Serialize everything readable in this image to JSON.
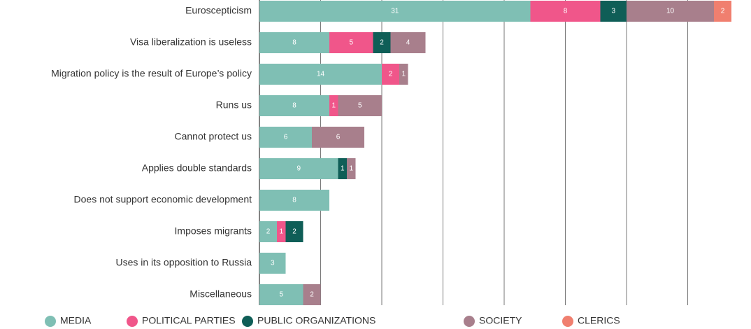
{
  "chart_data": {
    "type": "stacked_barh",
    "categories": [
      "Euroscepticism",
      "Visa liberalization is useless",
      "Migration policy is the result of Europe’s policy",
      "Runs us",
      "Cannot protect us",
      "Applies double standards",
      "Does not support economic development",
      "Imposes migrants",
      "Uses in its opposition to Russia",
      "Miscellaneous"
    ],
    "series": [
      {
        "name": "MEDIA",
        "color": "#7fbfb4",
        "values": [
          31,
          8,
          14,
          8,
          6,
          9,
          8,
          2,
          3,
          5
        ]
      },
      {
        "name": "POLITICAL PARTIES",
        "color": "#f0568a",
        "values": [
          8,
          5,
          2,
          1,
          0,
          0,
          0,
          1,
          0,
          0
        ]
      },
      {
        "name": "PUBLIC ORGANIZATIONS",
        "color": "#0f5e57",
        "values": [
          3,
          2,
          0,
          0,
          0,
          1,
          0,
          2,
          0,
          0
        ]
      },
      {
        "name": "SOCIETY",
        "color": "#a87f8c",
        "values": [
          10,
          4,
          1,
          5,
          6,
          1,
          0,
          0,
          0,
          2
        ]
      },
      {
        "name": "CLERICS",
        "color": "#f07f6f",
        "values": [
          2,
          0,
          0,
          0,
          0,
          0,
          0,
          0,
          0,
          0
        ]
      }
    ],
    "xlim": [
      0,
      56
    ],
    "xticks": [
      0,
      7,
      14,
      21,
      28,
      35,
      42,
      49
    ],
    "grid": true,
    "legend": "bottom"
  }
}
